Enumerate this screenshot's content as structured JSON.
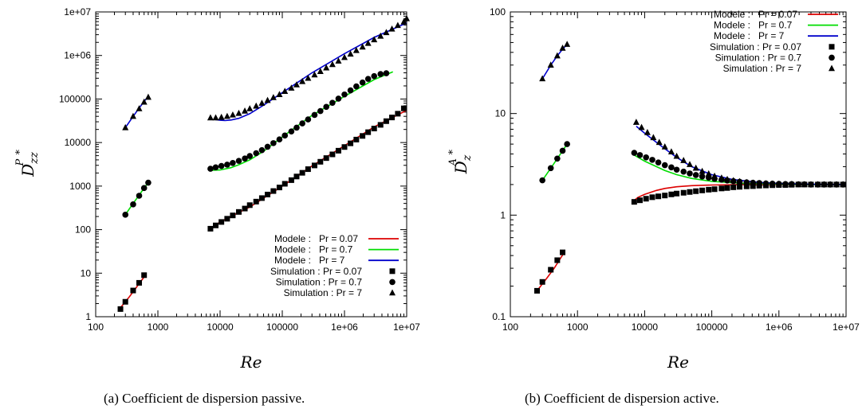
{
  "chart_data": [
    {
      "type": "scatter",
      "caption": "(a) Coefficient de dispersion passive.",
      "xlabel": "Re",
      "ylabel": {
        "main": "D",
        "sup": "P",
        "sub": "zz",
        "star": "*"
      },
      "xscale": "log",
      "yscale": "log",
      "xlim": [
        100,
        10000000
      ],
      "ylim": [
        1,
        10000000
      ],
      "xticks": [
        100,
        1000,
        10000,
        100000,
        1000000,
        10000000
      ],
      "xticklabels": [
        "100",
        "1000",
        "10000",
        "100000",
        "1e+06",
        "1e+07"
      ],
      "yticks": [
        1,
        10,
        100,
        1000,
        10000,
        100000,
        1000000,
        10000000
      ],
      "yticklabels": [
        "1",
        "10",
        "100",
        "1000",
        "10000",
        "100000",
        "1e+06",
        "1e+07"
      ],
      "grid": false,
      "legend": "bottom-right",
      "series": [
        {
          "name": "Modele :",
          "name2": "Pr = 0.07",
          "kind": "line",
          "color": "#dd0000",
          "segments": [
            {
              "x": [
                250,
                350,
                450,
                550,
                650
              ],
              "y": [
                1.6,
                2.9,
                4.7,
                6.9,
                9.5
              ]
            },
            {
              "x": [
                7000,
                10000,
                30000,
                100000,
                300000,
                1000000,
                3000000,
                10000000
              ],
              "y": [
                105,
                150,
                330,
                1000,
                2900,
                8500,
                23000,
                55000
              ]
            }
          ]
        },
        {
          "name": "Modele :",
          "name2": "Pr = 0.7",
          "kind": "line",
          "color": "#00dd00",
          "segments": [
            {
              "x": [
                300,
                400,
                500,
                600,
                700
              ],
              "y": [
                220,
                400,
                620,
                900,
                1200
              ]
            },
            {
              "x": [
                7000,
                10000,
                15000,
                20000,
                30000,
                50000,
                100000,
                300000,
                1000000,
                3000000,
                6000000
              ],
              "y": [
                2300,
                2350,
                2650,
                3100,
                4000,
                6300,
                13500,
                42000,
                115000,
                280000,
                420000
              ]
            }
          ]
        },
        {
          "name": "Modele :",
          "name2": "Pr = 7",
          "kind": "line",
          "color": "#0000cc",
          "segments": [
            {
              "x": [
                300,
                400,
                500,
                600,
                700
              ],
              "y": [
                22000,
                40000,
                62000,
                88000,
                115000
              ]
            },
            {
              "x": [
                8000,
                10000,
                12000,
                15000,
                20000,
                30000,
                50000,
                100000,
                300000,
                1000000,
                3000000,
                10000000
              ],
              "y": [
                34000,
                32500,
                32000,
                33000,
                36000,
                46000,
                72000,
                140000,
                400000,
                1100000,
                2600000,
                5600000
              ]
            }
          ]
        },
        {
          "name": "Simulation : Pr = 0.07",
          "kind": "scatter",
          "marker": "square",
          "color": "#000000",
          "x": [
            250,
            300,
            400,
            500,
            600,
            7000,
            8500,
            10500,
            13000,
            16000,
            20000,
            25000,
            30000,
            38000,
            47000,
            58000,
            72000,
            90000,
            110000,
            140000,
            170000,
            210000,
            260000,
            330000,
            410000,
            510000,
            640000,
            800000,
            1000000,
            1250000,
            1550000,
            1950000,
            2400000,
            3000000,
            3800000,
            4700000,
            5800000,
            7200000,
            9000000
          ],
          "y": [
            1.5,
            2.2,
            4.0,
            6.0,
            9.0,
            105,
            125,
            150,
            178,
            212,
            255,
            305,
            365,
            440,
            530,
            640,
            770,
            930,
            1130,
            1370,
            1660,
            2020,
            2450,
            2980,
            3620,
            4400,
            5350,
            6500,
            7900,
            9600,
            11700,
            14200,
            17300,
            21000,
            25500,
            31000,
            37700,
            46000,
            61000
          ]
        },
        {
          "name": "Simulation : Pr = 0.7",
          "kind": "scatter",
          "marker": "circle",
          "color": "#000000",
          "x": [
            300,
            400,
            500,
            600,
            700,
            7000,
            8500,
            10500,
            13000,
            16000,
            20000,
            25000,
            30000,
            38000,
            47000,
            58000,
            72000,
            90000,
            110000,
            140000,
            170000,
            210000,
            260000,
            330000,
            410000,
            510000,
            640000,
            800000,
            1000000,
            1250000,
            1550000,
            1950000,
            2400000,
            3000000,
            3800000,
            4700000
          ],
          "y": [
            220,
            380,
            600,
            900,
            1200,
            2500,
            2700,
            2900,
            3100,
            3400,
            3800,
            4300,
            4900,
            5700,
            6700,
            8000,
            9700,
            11800,
            14500,
            18000,
            22000,
            27500,
            34000,
            43000,
            53000,
            66000,
            82000,
            102000,
            127000,
            158000,
            195000,
            240000,
            290000,
            335000,
            375000,
            390000
          ]
        },
        {
          "name": "Simulation : Pr = 7",
          "kind": "scatter",
          "marker": "triangle",
          "color": "#000000",
          "x": [
            300,
            400,
            500,
            600,
            700,
            7000,
            8500,
            10500,
            13000,
            16000,
            20000,
            25000,
            30000,
            38000,
            47000,
            58000,
            72000,
            90000,
            110000,
            140000,
            170000,
            210000,
            260000,
            330000,
            410000,
            510000,
            640000,
            800000,
            1000000,
            1250000,
            1550000,
            1950000,
            2400000,
            3000000,
            3800000,
            4700000,
            5800000,
            7200000,
            9000000,
            10000000
          ],
          "y": [
            22000,
            40000,
            60000,
            85000,
            110000,
            37000,
            37000,
            38000,
            40000,
            43000,
            47000,
            53000,
            60000,
            69000,
            80000,
            93000,
            108000,
            127000,
            150000,
            178000,
            212000,
            253000,
            300000,
            360000,
            430000,
            520000,
            620000,
            745000,
            900000,
            1080000,
            1300000,
            1570000,
            1900000,
            2300000,
            2780000,
            3360000,
            4050000,
            4900000,
            5900000,
            7000000
          ]
        }
      ]
    },
    {
      "type": "scatter",
      "caption": "(b) Coefficient de dispersion active.",
      "xlabel": "Re",
      "ylabel": {
        "main": "D",
        "sup": "A",
        "sub": "z",
        "star": "*"
      },
      "xscale": "log",
      "yscale": "log",
      "xlim": [
        100,
        10000000
      ],
      "ylim": [
        0.1,
        100
      ],
      "xticks": [
        100,
        1000,
        10000,
        100000,
        1000000,
        10000000
      ],
      "xticklabels": [
        "100",
        "1000",
        "10000",
        "100000",
        "1e+06",
        "1e+07"
      ],
      "yticks": [
        0.1,
        1,
        10,
        100
      ],
      "yticklabels": [
        "0.1",
        "1",
        "10",
        "100"
      ],
      "grid": false,
      "legend": "top-right",
      "series": [
        {
          "name": "Modele :",
          "name2": "Pr = 0.07",
          "kind": "line",
          "color": "#dd0000",
          "segments": [
            {
              "x": [
                250,
                350,
                450,
                550,
                650
              ],
              "y": [
                0.18,
                0.24,
                0.3,
                0.37,
                0.44
              ]
            },
            {
              "x": [
                7000,
                8000,
                10000,
                15000,
                20000,
                30000,
                50000,
                100000,
                300000,
                1000000,
                3000000,
                10000000
              ],
              "y": [
                1.4,
                1.5,
                1.6,
                1.75,
                1.83,
                1.9,
                1.95,
                1.98,
                2.0,
                2.0,
                2.0,
                2.0
              ]
            }
          ]
        },
        {
          "name": "Modele :",
          "name2": "Pr = 0.7",
          "kind": "line",
          "color": "#00dd00",
          "segments": [
            {
              "x": [
                300,
                400,
                500,
                600,
                700
              ],
              "y": [
                2.2,
                2.9,
                3.6,
                4.3,
                5.0
              ]
            },
            {
              "x": [
                7000,
                10000,
                15000,
                20000,
                30000,
                50000,
                100000,
                300000,
                1000000,
                3000000,
                10000000
              ],
              "y": [
                3.9,
                3.4,
                3.0,
                2.75,
                2.5,
                2.3,
                2.15,
                2.05,
                2.02,
                2.0,
                2.0
              ]
            }
          ]
        },
        {
          "name": "Modele :",
          "name2": "Pr = 7",
          "kind": "line",
          "color": "#0000cc",
          "segments": [
            {
              "x": [
                300,
                400,
                500,
                600,
                700
              ],
              "y": [
                22,
                30,
                37,
                43,
                48
              ]
            },
            {
              "x": [
                7500,
                10000,
                15000,
                20000,
                30000,
                50000,
                100000,
                200000,
                500000,
                1000000,
                3000000,
                10000000
              ],
              "y": [
                7.5,
                6.4,
                5.2,
                4.5,
                3.7,
                3.0,
                2.5,
                2.25,
                2.1,
                2.05,
                2.02,
                2.0
              ]
            }
          ]
        },
        {
          "name": "Simulation : Pr = 0.07",
          "kind": "scatter",
          "marker": "square",
          "color": "#000000",
          "x": [
            250,
            300,
            400,
            500,
            600,
            7000,
            8500,
            10500,
            13000,
            16000,
            20000,
            25000,
            30000,
            38000,
            47000,
            58000,
            72000,
            90000,
            110000,
            140000,
            170000,
            210000,
            260000,
            330000,
            410000,
            510000,
            640000,
            800000,
            1000000,
            1250000,
            1550000,
            1950000,
            2400000,
            3000000,
            3800000,
            4700000,
            5800000,
            7200000,
            9000000
          ],
          "y": [
            0.18,
            0.22,
            0.29,
            0.36,
            0.43,
            1.35,
            1.4,
            1.45,
            1.5,
            1.53,
            1.56,
            1.6,
            1.63,
            1.66,
            1.69,
            1.72,
            1.75,
            1.78,
            1.8,
            1.83,
            1.85,
            1.88,
            1.9,
            1.92,
            1.93,
            1.95,
            1.96,
            1.97,
            1.98,
            1.98,
            1.99,
            2.0,
            2.0,
            2.0,
            2.0,
            2.0,
            2.0,
            2.0,
            2.0
          ]
        },
        {
          "name": "Simulation : Pr = 0.7",
          "kind": "scatter",
          "marker": "circle",
          "color": "#000000",
          "x": [
            300,
            400,
            500,
            600,
            700,
            7000,
            8500,
            10500,
            13000,
            16000,
            20000,
            25000,
            30000,
            38000,
            47000,
            58000,
            72000,
            90000,
            110000,
            140000,
            170000,
            210000,
            260000,
            330000,
            410000,
            510000,
            640000,
            800000,
            1000000,
            1250000,
            1550000,
            1950000,
            2400000,
            3000000,
            3800000,
            4700000,
            5800000,
            7200000,
            9000000
          ],
          "y": [
            2.2,
            2.9,
            3.6,
            4.3,
            5.0,
            4.1,
            3.9,
            3.7,
            3.5,
            3.3,
            3.1,
            2.95,
            2.8,
            2.68,
            2.57,
            2.48,
            2.4,
            2.34,
            2.28,
            2.23,
            2.19,
            2.16,
            2.13,
            2.1,
            2.08,
            2.07,
            2.05,
            2.04,
            2.03,
            2.02,
            2.02,
            2.01,
            2.01,
            2.0,
            2.0,
            2.0,
            2.0,
            2.0,
            2.0
          ]
        },
        {
          "name": "Simulation : Pr = 7",
          "kind": "scatter",
          "marker": "triangle",
          "color": "#000000",
          "x": [
            300,
            400,
            500,
            600,
            700,
            7500,
            9000,
            11000,
            13500,
            16500,
            20000,
            25000,
            30000,
            38000,
            47000,
            58000,
            72000,
            90000,
            110000,
            140000,
            170000,
            210000,
            260000,
            330000,
            410000,
            510000,
            640000,
            800000,
            1000000,
            1250000,
            1550000,
            1950000,
            2400000,
            3000000,
            3800000,
            4700000,
            5800000,
            7200000,
            9000000
          ],
          "y": [
            22,
            30,
            37,
            44,
            48,
            8.2,
            7.3,
            6.5,
            5.8,
            5.2,
            4.7,
            4.2,
            3.8,
            3.45,
            3.15,
            2.9,
            2.7,
            2.55,
            2.42,
            2.32,
            2.25,
            2.19,
            2.14,
            2.1,
            2.07,
            2.05,
            2.04,
            2.03,
            2.02,
            2.01,
            2.01,
            2.0,
            2.0,
            2.0,
            2.0,
            2.0,
            2.0,
            2.0,
            2.0
          ]
        }
      ]
    }
  ]
}
